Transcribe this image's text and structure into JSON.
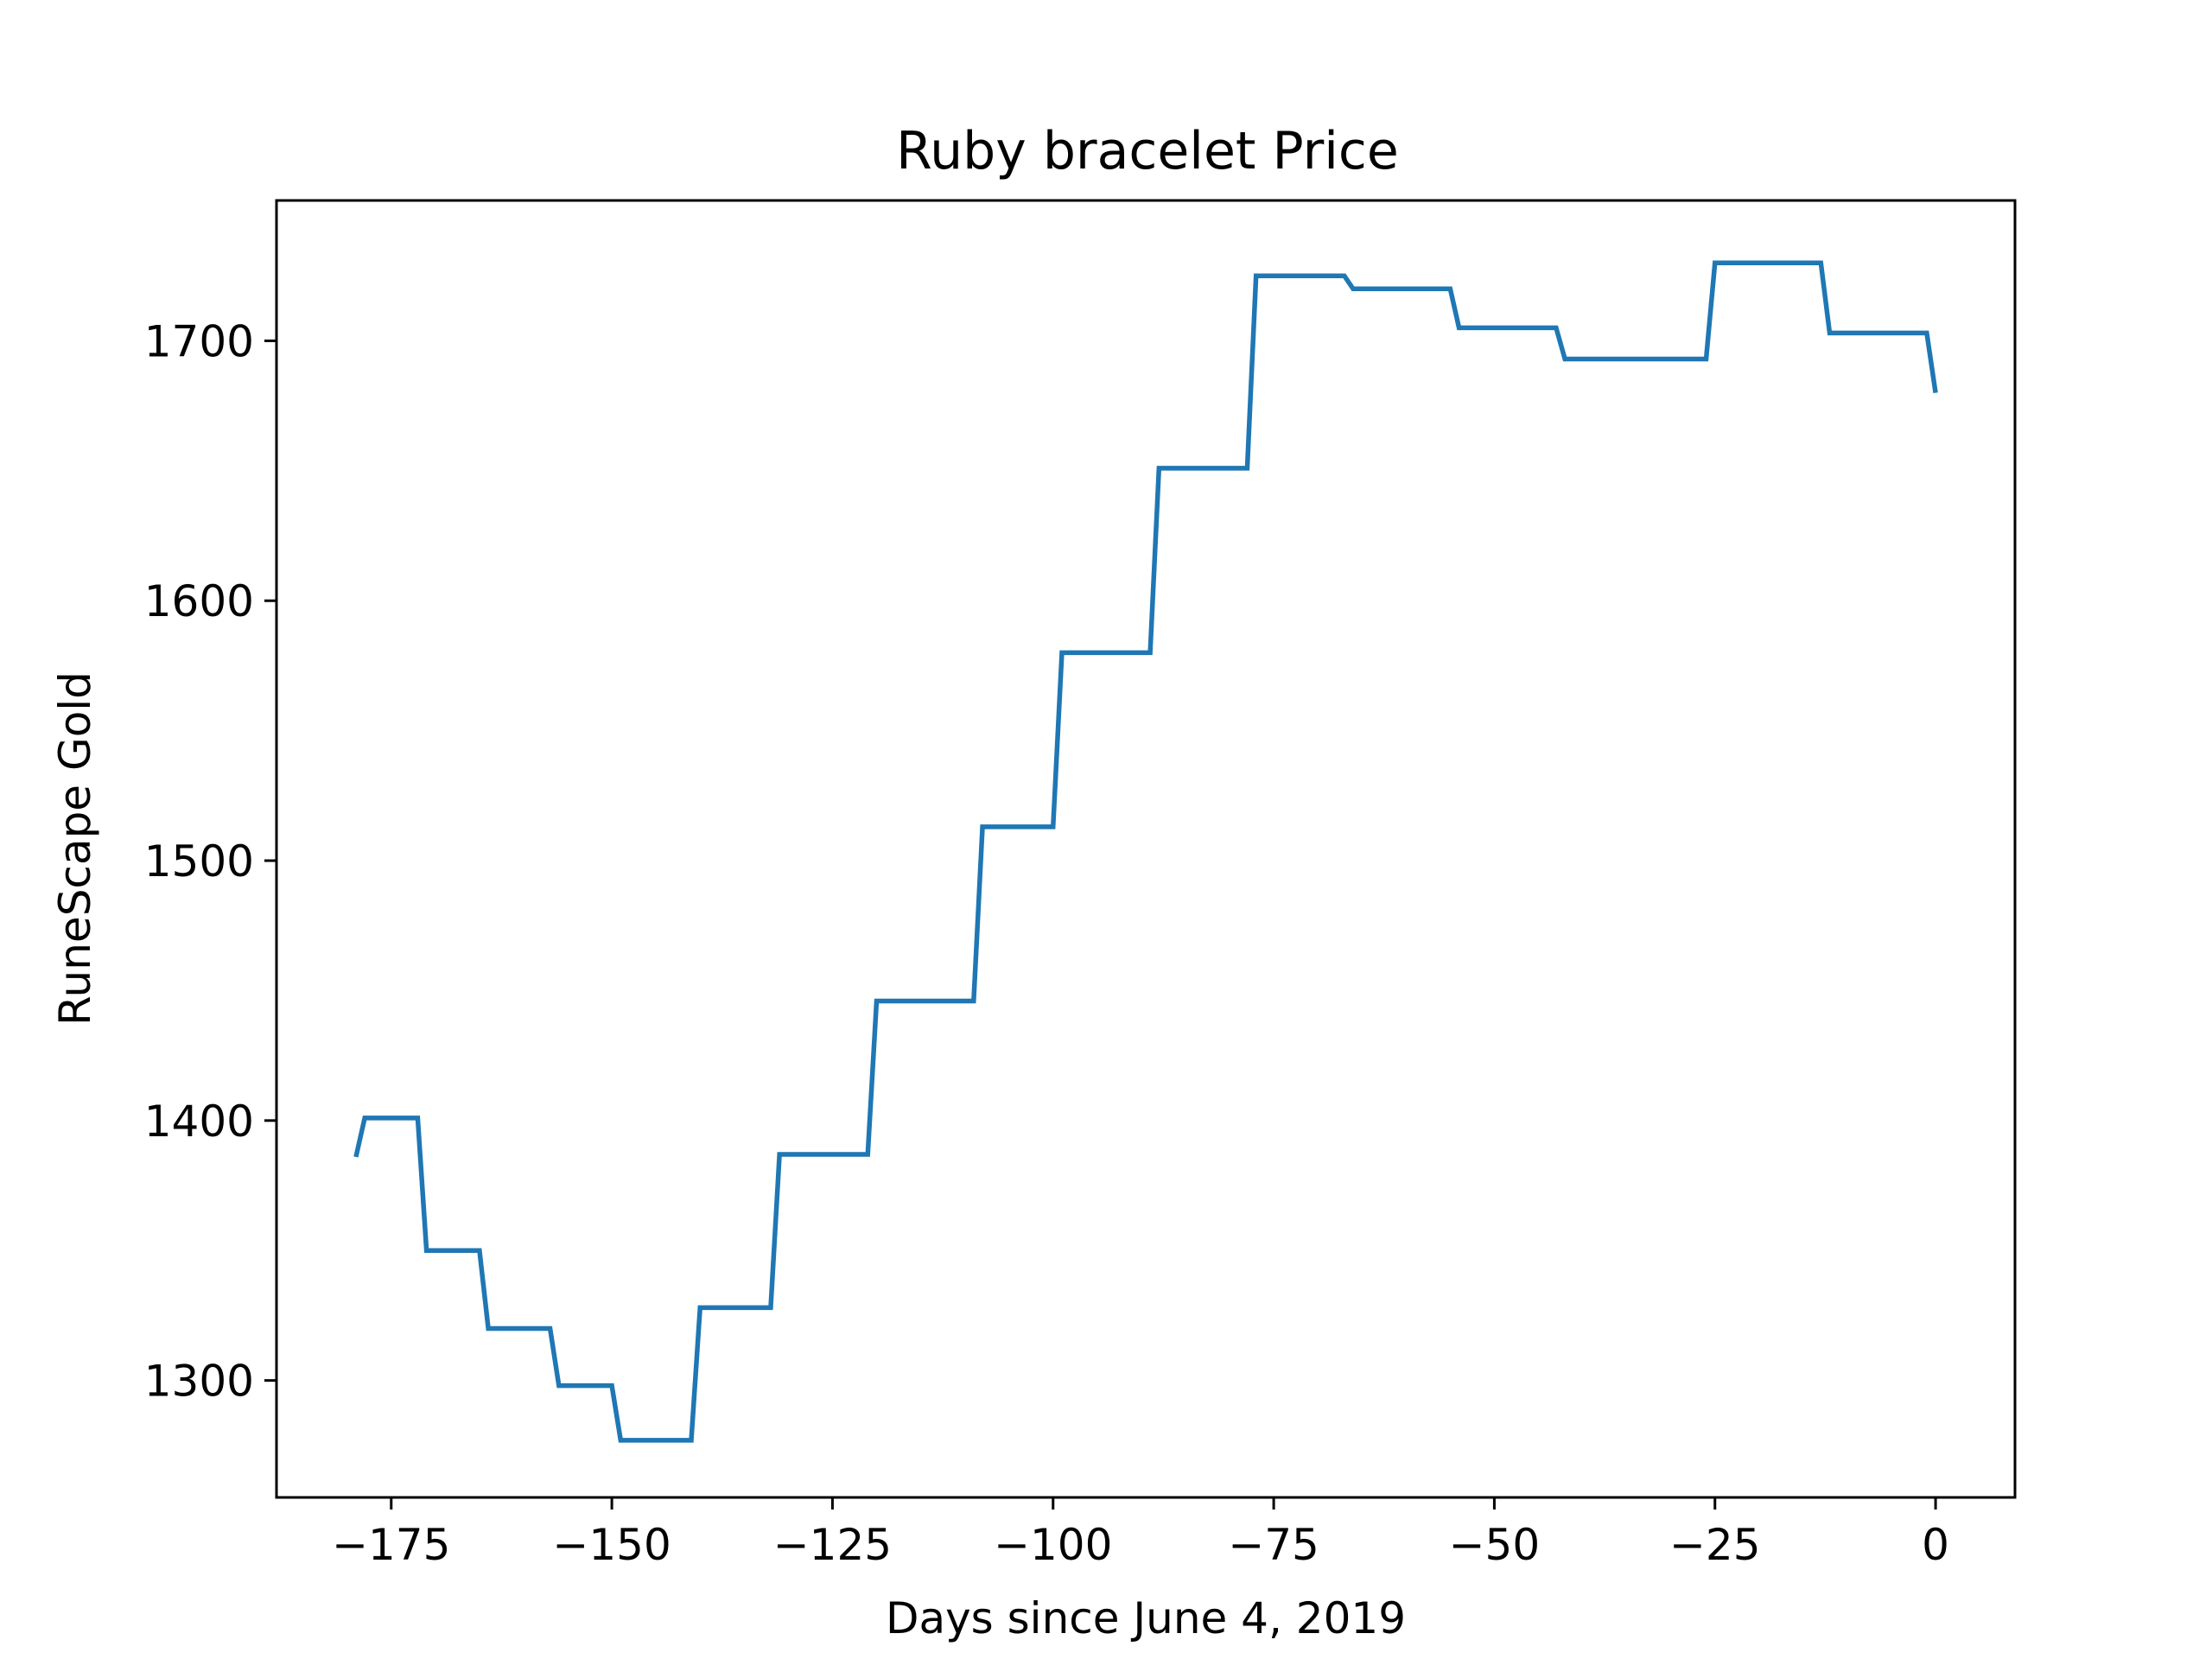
{
  "chart_data": {
    "type": "line",
    "title": "Ruby bracelet Price",
    "xlabel": "Days since June 4, 2019",
    "ylabel": "RuneScape Gold",
    "xlim": [
      -188,
      9
    ],
    "ylim": [
      1255,
      1754
    ],
    "x_ticks": [
      -175,
      -150,
      -125,
      -100,
      -75,
      -50,
      -25,
      0
    ],
    "x_tick_labels": [
      "−175",
      "−150",
      "−125",
      "−100",
      "−75",
      "−50",
      "−25",
      "0"
    ],
    "y_ticks": [
      1300,
      1400,
      1500,
      1600,
      1700
    ],
    "y_tick_labels": [
      "1300",
      "1400",
      "1500",
      "1600",
      "1700"
    ],
    "grid": false,
    "colors": {
      "series": "#1f77b4",
      "frame": "#000000",
      "background": "#ffffff"
    },
    "series": [
      {
        "x": [
          -179,
          -178,
          -172,
          -171,
          -165,
          -164,
          -157,
          -156,
          -150,
          -149,
          -141,
          -140,
          -132,
          -131,
          -121,
          -120,
          -109,
          -108,
          -100,
          -99,
          -89,
          -88,
          -78,
          -77,
          -67,
          -66,
          -55,
          -54,
          -43,
          -42,
          -26,
          -25,
          -13,
          -12,
          -1,
          0
        ],
        "values": [
          1386,
          1401,
          1401,
          1350,
          1350,
          1320,
          1320,
          1298,
          1298,
          1277,
          1277,
          1328,
          1328,
          1387,
          1387,
          1446,
          1446,
          1513,
          1513,
          1580,
          1580,
          1651,
          1651,
          1725,
          1725,
          1720,
          1720,
          1705,
          1705,
          1693,
          1693,
          1730,
          1730,
          1703,
          1703,
          1680
        ]
      }
    ]
  }
}
